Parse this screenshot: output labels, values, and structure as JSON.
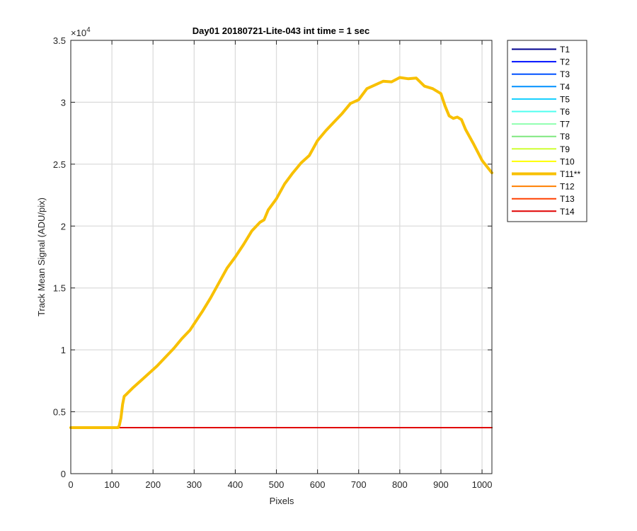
{
  "chart_data": {
    "type": "line",
    "title": "Day01 20180721-Lite-043 int time = 1 sec",
    "xlabel": "Pixels",
    "ylabel": "Track Mean Signal (ADU/pix)",
    "y_exponent_label": "×10",
    "y_exponent": "4",
    "xlim": [
      0,
      1024
    ],
    "ylim": [
      0,
      35000
    ],
    "xticks": [
      0,
      100,
      200,
      300,
      400,
      500,
      600,
      700,
      800,
      900,
      1000
    ],
    "xtick_labels": [
      "0",
      "100",
      "200",
      "300",
      "400",
      "500",
      "600",
      "700",
      "800",
      "900",
      "1000"
    ],
    "yticks": [
      0,
      5000,
      10000,
      15000,
      20000,
      25000,
      30000,
      35000
    ],
    "ytick_labels": [
      "0",
      "0.5",
      "1",
      "1.5",
      "2",
      "2.5",
      "3",
      "3.5"
    ],
    "grid": true,
    "legend_position": "outside-right",
    "baseline_value": 3720,
    "highlight_series": "T11**",
    "series": [
      {
        "name": "T1",
        "color": "#00008f",
        "x": [
          0,
          1024
        ],
        "y": [
          3720,
          3720
        ]
      },
      {
        "name": "T2",
        "color": "#0010ff",
        "x": [
          0,
          1024
        ],
        "y": [
          3720,
          3720
        ]
      },
      {
        "name": "T3",
        "color": "#0050ff",
        "x": [
          0,
          1024
        ],
        "y": [
          3720,
          3720
        ]
      },
      {
        "name": "T4",
        "color": "#0090ff",
        "x": [
          0,
          1024
        ],
        "y": [
          3720,
          3720
        ]
      },
      {
        "name": "T5",
        "color": "#10cfff",
        "x": [
          0,
          1024
        ],
        "y": [
          3720,
          3720
        ]
      },
      {
        "name": "T6",
        "color": "#4fffef",
        "x": [
          0,
          1024
        ],
        "y": [
          3720,
          3720
        ]
      },
      {
        "name": "T7",
        "color": "#8fffaf",
        "x": [
          0,
          1024
        ],
        "y": [
          3720,
          3720
        ]
      },
      {
        "name": "T8",
        "color": "#7fe87f",
        "x": [
          0,
          1024
        ],
        "y": [
          3720,
          3720
        ]
      },
      {
        "name": "T9",
        "color": "#cfff30",
        "x": [
          0,
          1024
        ],
        "y": [
          3720,
          3720
        ]
      },
      {
        "name": "T10",
        "color": "#ffff00",
        "x": [
          0,
          1024
        ],
        "y": [
          3720,
          3720
        ]
      },
      {
        "name": "T11**",
        "color": "#f8c000",
        "highlight": true,
        "x": [
          0,
          115,
          118,
          122,
          126,
          130,
          135,
          150,
          170,
          190,
          210,
          230,
          250,
          270,
          290,
          300,
          320,
          340,
          360,
          380,
          400,
          420,
          440,
          460,
          470,
          480,
          500,
          520,
          540,
          560,
          580,
          600,
          620,
          640,
          660,
          680,
          700,
          720,
          740,
          760,
          780,
          800,
          820,
          840,
          860,
          880,
          900,
          910,
          920,
          930,
          940,
          950,
          960,
          980,
          1000,
          1024
        ],
        "y": [
          3720,
          3720,
          3900,
          4500,
          5600,
          6250,
          6400,
          6900,
          7500,
          8100,
          8700,
          9400,
          10100,
          10900,
          11600,
          12100,
          13100,
          14200,
          15400,
          16600,
          17500,
          18500,
          19600,
          20300,
          20500,
          21300,
          22200,
          23400,
          24300,
          25100,
          25700,
          26900,
          27700,
          28400,
          29100,
          29900,
          30200,
          31100,
          31400,
          31700,
          31650,
          32000,
          31900,
          31950,
          31300,
          31100,
          30700,
          29700,
          28900,
          28700,
          28800,
          28600,
          27800,
          26600,
          25300,
          24300
        ]
      },
      {
        "name": "T12",
        "color": "#ff7f00",
        "x": [
          0,
          1024
        ],
        "y": [
          3720,
          3720
        ]
      },
      {
        "name": "T13",
        "color": "#ff4000",
        "x": [
          0,
          1024
        ],
        "y": [
          3720,
          3720
        ]
      },
      {
        "name": "T14",
        "color": "#e00000",
        "x": [
          0,
          1024
        ],
        "y": [
          3720,
          3720
        ]
      }
    ]
  }
}
